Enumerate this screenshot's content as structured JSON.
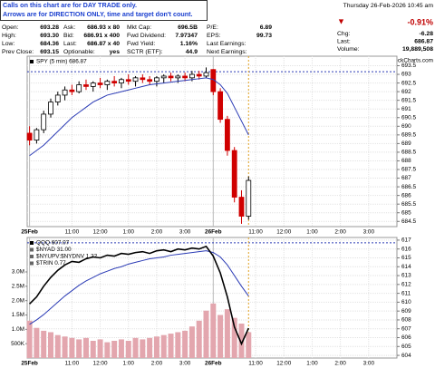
{
  "header": {
    "notice": [
      "Calls on this chart are for DAY TRADE only.",
      "Arrows are for DIRECTION ONLY, time and target don't count."
    ],
    "quote": [
      [
        "Open:",
        "693.28",
        "Ask:",
        "686.93 x 80",
        "Mkt Cap:",
        "696.5B",
        "P/E:",
        "6.89"
      ],
      [
        "High:",
        "693.30",
        "Bid:",
        "686.91 x 400",
        "Fwd Dividend:",
        "7.97347",
        "EPS:",
        "99.73"
      ],
      [
        "Low:",
        "684.36",
        "Last:",
        "686.87 x 40",
        "Fwd Yield:",
        "1.16%",
        "Last Earnings:"
      ],
      [
        "Prev Close:",
        "693.15",
        "Optionable:",
        "yes",
        "SCTR (ETF):",
        "44.9",
        "Next Earnings:"
      ]
    ],
    "date": "Thursday 26-Feb-2026 10:45 am",
    "change_pct": "-0.91%",
    "stats": [
      [
        "Chg:",
        "-6.28"
      ],
      [
        "Last:",
        "686.87"
      ],
      [
        "Volume:",
        "19,889,508"
      ]
    ],
    "copyright": "© StockCharts.com"
  },
  "chart_data": [
    {
      "type": "candlestick",
      "legend": [
        "SPY (5 min) 686.87"
      ],
      "x": [
        0,
        15,
        30,
        45,
        60,
        75,
        90,
        105,
        120,
        135,
        150,
        165,
        180,
        195,
        210,
        225,
        240,
        255,
        270,
        285,
        300,
        315,
        330,
        345,
        360,
        375,
        390,
        405,
        420,
        435,
        450,
        465
      ],
      "open": [
        689.6,
        689.2,
        689.8,
        690.7,
        691.4,
        691.8,
        692.1,
        692.0,
        692.4,
        692.3,
        692.5,
        692.4,
        692.6,
        692.5,
        692.7,
        692.6,
        692.8,
        692.7,
        692.6,
        692.8,
        692.9,
        692.8,
        692.9,
        692.8,
        693.0,
        692.9,
        693.28,
        692.0,
        690.4,
        688.6,
        685.9,
        684.8
      ],
      "high": [
        690.0,
        689.9,
        690.9,
        691.6,
        692.0,
        692.3,
        692.4,
        692.6,
        692.7,
        692.6,
        692.8,
        692.7,
        692.9,
        692.8,
        693.0,
        692.9,
        693.0,
        692.9,
        692.9,
        693.0,
        693.1,
        693.0,
        693.1,
        693.2,
        693.2,
        693.4,
        693.3,
        692.2,
        690.6,
        688.8,
        686.3,
        687.1
      ],
      "low": [
        688.9,
        689.0,
        689.6,
        690.5,
        691.2,
        691.5,
        691.8,
        691.9,
        692.1,
        692.0,
        692.2,
        692.1,
        692.3,
        692.2,
        692.4,
        692.3,
        692.5,
        692.4,
        692.3,
        692.5,
        692.6,
        692.5,
        692.6,
        692.6,
        692.7,
        692.8,
        691.8,
        690.2,
        688.3,
        685.6,
        684.36,
        684.6
      ],
      "close": [
        689.2,
        689.8,
        690.7,
        691.4,
        691.8,
        692.1,
        692.0,
        692.4,
        692.3,
        692.5,
        692.4,
        692.6,
        692.5,
        692.7,
        692.6,
        692.8,
        692.7,
        692.6,
        692.8,
        692.9,
        692.8,
        692.9,
        692.8,
        693.0,
        692.9,
        693.1,
        692.0,
        690.4,
        688.6,
        685.9,
        684.8,
        686.87
      ],
      "up_color": "#000000",
      "down_color": "#d00000",
      "series": [
        {
          "color": "#2b3bb5",
          "values": [
            688.3,
            688.6,
            688.9,
            689.3,
            689.7,
            690.1,
            690.5,
            690.8,
            691.1,
            691.4,
            691.6,
            691.8,
            691.9,
            692.0,
            692.1,
            692.2,
            692.3,
            692.4,
            692.45,
            692.5,
            692.55,
            692.6,
            692.65,
            692.7,
            692.75,
            692.8,
            692.7,
            692.4,
            691.9,
            691.1,
            690.3,
            689.5
          ]
        }
      ],
      "hline": 693.15,
      "vline": 465,
      "xlim": [
        -5,
        780
      ],
      "xticks": [
        {
          "value": 0,
          "label": "25Feb"
        },
        {
          "value": 90,
          "label": "11:00"
        },
        {
          "value": 150,
          "label": "12:00"
        },
        {
          "value": 210,
          "label": "1:00"
        },
        {
          "value": 270,
          "label": "2:00"
        },
        {
          "value": 330,
          "label": "3:00"
        },
        {
          "value": 390,
          "label": "26Feb"
        },
        {
          "value": 480,
          "label": "11:00"
        },
        {
          "value": 540,
          "label": "12:00"
        },
        {
          "value": 600,
          "label": "1:00"
        },
        {
          "value": 660,
          "label": "2:00"
        },
        {
          "value": 720,
          "label": "3:00"
        }
      ],
      "ylim": [
        684.2,
        694.05
      ],
      "yticks": [
        684.5,
        685.0,
        685.5,
        686.0,
        686.5,
        687.0,
        687.5,
        688.0,
        688.5,
        689.0,
        689.5,
        690.0,
        690.5,
        691.0,
        691.5,
        692.0,
        692.5,
        693.0,
        693.5
      ],
      "grid": true
    },
    {
      "type": "line",
      "legend": [
        "QQQ 607.07",
        "$NYAD 31.00",
        "$NYUPV:$NYDNV 1.32",
        "$TRIN 0.77"
      ],
      "x": [
        0,
        15,
        30,
        45,
        60,
        75,
        90,
        105,
        120,
        135,
        150,
        165,
        180,
        195,
        210,
        225,
        240,
        255,
        270,
        285,
        300,
        315,
        330,
        345,
        360,
        375,
        390,
        405,
        420,
        435,
        450,
        465
      ],
      "series": [
        {
          "type": "bar",
          "axis": "y2",
          "color": "#e3a6ae",
          "values": [
            1300000,
            1050000,
            950000,
            900000,
            800000,
            750000,
            700000,
            650000,
            700000,
            600000,
            650000,
            550000,
            600000,
            650000,
            600000,
            700000,
            650000,
            700000,
            750000,
            800000,
            850000,
            900000,
            950000,
            1100000,
            1300000,
            1650000,
            1900000,
            1500000,
            1700000,
            1400000,
            1200000,
            900000
          ]
        },
        {
          "color": "#2b3bb5",
          "values": [
            607.5,
            608.0,
            608.6,
            609.3,
            610.0,
            610.7,
            611.3,
            611.9,
            612.4,
            612.8,
            613.2,
            613.5,
            613.8,
            614.0,
            614.3,
            614.5,
            614.7,
            614.9,
            615.0,
            615.1,
            615.3,
            615.4,
            615.5,
            615.6,
            615.7,
            615.8,
            615.6,
            615.1,
            614.2,
            613.0,
            611.8,
            610.7
          ]
        },
        {
          "color": "#000000",
          "values": [
            609.8,
            610.6,
            611.8,
            612.8,
            613.6,
            614.2,
            614.6,
            614.5,
            614.9,
            615.1,
            615.0,
            615.3,
            615.2,
            615.5,
            615.4,
            615.6,
            615.7,
            615.5,
            615.8,
            615.9,
            615.7,
            616.0,
            615.9,
            616.1,
            616.0,
            616.3,
            615.2,
            613.3,
            610.6,
            607.2,
            605.3,
            607.07
          ]
        }
      ],
      "hline": 616.7,
      "vline": 465,
      "xlim": [
        -5,
        780
      ],
      "xticks": [
        {
          "value": 0,
          "label": "25Feb"
        },
        {
          "value": 90,
          "label": "11:00"
        },
        {
          "value": 150,
          "label": "12:00"
        },
        {
          "value": 210,
          "label": "1:00"
        },
        {
          "value": 270,
          "label": "2:00"
        },
        {
          "value": 330,
          "label": "3:00"
        },
        {
          "value": 390,
          "label": "26Feb"
        },
        {
          "value": 480,
          "label": "11:00"
        },
        {
          "value": 540,
          "label": "12:00"
        },
        {
          "value": 600,
          "label": "1:00"
        },
        {
          "value": 660,
          "label": "2:00"
        },
        {
          "value": 720,
          "label": "3:00"
        }
      ],
      "ylim": [
        603.7,
        617.3
      ],
      "yticks": [
        604,
        605,
        606,
        607,
        608,
        609,
        610,
        611,
        612,
        613,
        614,
        615,
        616,
        617
      ],
      "y2lim": [
        0,
        4200000
      ],
      "y2ticks": [
        {
          "value": 500000,
          "label": "500K"
        },
        {
          "value": 1000000,
          "label": "1.0M"
        },
        {
          "value": 1500000,
          "label": "1.5M"
        },
        {
          "value": 2000000,
          "label": "2.0M"
        },
        {
          "value": 2500000,
          "label": "2.5M"
        },
        {
          "value": 3000000,
          "label": "3.0M"
        }
      ],
      "grid": true
    }
  ]
}
